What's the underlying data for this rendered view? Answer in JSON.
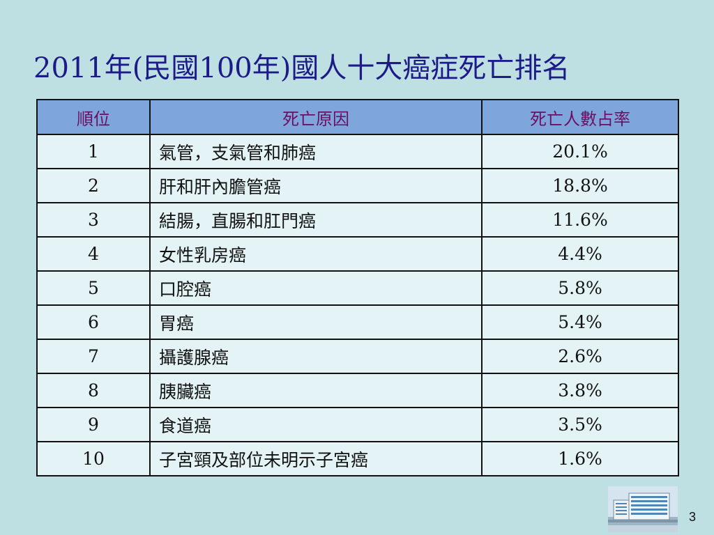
{
  "slide": {
    "title": "2011年(民國100年)國人十大癌症死亡排名",
    "page_number": "3"
  },
  "table": {
    "headers": [
      "順位",
      "死亡原因",
      "死亡人數占率"
    ],
    "rows": [
      [
        "1",
        "氣管，支氣管和肺癌",
        "20.1%"
      ],
      [
        "2",
        "肝和肝內膽管癌",
        "18.8%"
      ],
      [
        "3",
        "結腸，直腸和肛門癌",
        "11.6%"
      ],
      [
        "4",
        "女性乳房癌",
        "4.4%"
      ],
      [
        "5",
        "口腔癌",
        "5.8%"
      ],
      [
        "6",
        "胃癌",
        "5.4%"
      ],
      [
        "7",
        "攝護腺癌",
        "2.6%"
      ],
      [
        "8",
        "胰臟癌",
        "3.8%"
      ],
      [
        "9",
        "食道癌",
        "3.5%"
      ],
      [
        "10",
        "子宮頸及部位未明示子宮癌",
        "1.6%"
      ]
    ]
  },
  "colors": {
    "background": "#bfe0e3",
    "title": "#1d1b8a",
    "header_fill": "#7fa6dc",
    "header_text": "#6b0f63",
    "cell_fill": "#e4f4f6"
  }
}
